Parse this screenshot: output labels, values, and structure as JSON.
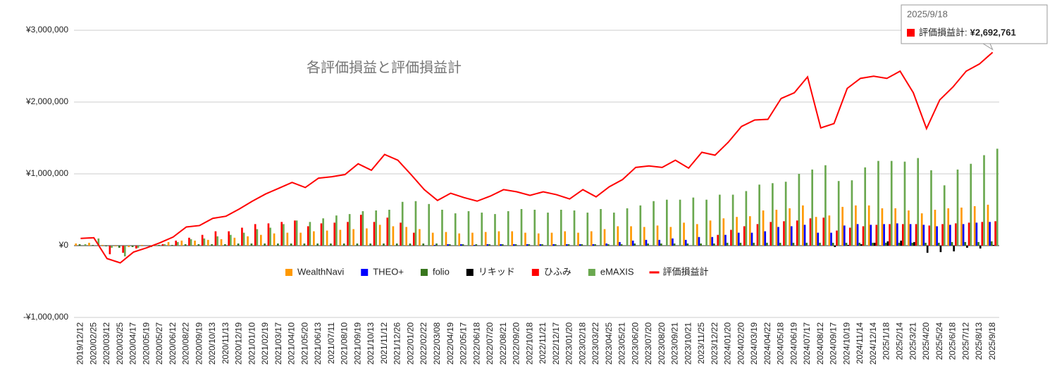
{
  "chart_data": {
    "type": "bar_line",
    "title": "各評価損益と評価損益計",
    "categories": [
      "2019/12/12",
      "2020/02/25",
      "2020/03/12",
      "2020/03/25",
      "2020/04/17",
      "2020/05/19",
      "2020/05/27",
      "2020/06/12",
      "2020/08/22",
      "2020/09/19",
      "2020/10/13",
      "2020/11/13",
      "2020/12/19",
      "2021/01/10",
      "2021/02/19",
      "2021/03/17",
      "2021/04/10",
      "2021/05/20",
      "2021/06/13",
      "2021/07/11",
      "2021/08/10",
      "2021/09/19",
      "2021/10/13",
      "2021/11/12",
      "2021/12/26",
      "2022/01/20",
      "2022/02/22",
      "2022/03/08",
      "2022/04/19",
      "2022/05/17",
      "2022/06/18",
      "2022/07/20",
      "2022/08/21",
      "2022/09/20",
      "2022/10/18",
      "2022/11/21",
      "2022/12/17",
      "2023/01/20",
      "2023/02/18",
      "2023/03/22",
      "2023/04/25",
      "2023/05/21",
      "2023/06/20",
      "2023/07/20",
      "2023/08/20",
      "2023/09/21",
      "2023/10/21",
      "2023/11/25",
      "2023/12/22",
      "2024/01/20",
      "2024/02/20",
      "2024/03/19",
      "2024/04/22",
      "2024/05/18",
      "2024/06/19",
      "2024/07/17",
      "2024/08/12",
      "2024/09/17",
      "2024/10/19",
      "2024/11/14",
      "2024/12/14",
      "2025/1/18",
      "2025/2/14",
      "2025/3/21",
      "2025/4/20",
      "2025/5/24",
      "2025/6/18",
      "2025/7/12",
      "2025/8/13",
      "2025/9/18"
    ],
    "series": [
      {
        "name": "WealthNavi",
        "kind": "bar",
        "color": "#ff9900",
        "values": [
          30000,
          40000,
          10000,
          -10000,
          -20000,
          10000,
          20000,
          50000,
          70000,
          70000,
          80000,
          90000,
          110000,
          130000,
          150000,
          170000,
          180000,
          180000,
          200000,
          210000,
          220000,
          230000,
          240000,
          290000,
          270000,
          260000,
          230000,
          180000,
          190000,
          170000,
          180000,
          190000,
          200000,
          200000,
          180000,
          170000,
          180000,
          200000,
          180000,
          200000,
          230000,
          270000,
          270000,
          260000,
          280000,
          260000,
          320000,
          300000,
          350000,
          380000,
          400000,
          410000,
          490000,
          500000,
          520000,
          560000,
          400000,
          420000,
          540000,
          560000,
          560000,
          520000,
          520000,
          490000,
          450000,
          500000,
          520000,
          530000,
          550000,
          570000
        ]
      },
      {
        "name": "THEO+",
        "kind": "bar",
        "color": "#0000ff",
        "values": [
          0,
          0,
          0,
          0,
          0,
          0,
          0,
          0,
          0,
          0,
          0,
          0,
          0,
          0,
          0,
          0,
          0,
          0,
          0,
          0,
          0,
          0,
          0,
          0,
          0,
          0,
          0,
          10000,
          20000,
          20000,
          10000,
          20000,
          20000,
          20000,
          20000,
          20000,
          20000,
          20000,
          20000,
          20000,
          30000,
          50000,
          70000,
          80000,
          80000,
          100000,
          80000,
          120000,
          120000,
          150000,
          180000,
          180000,
          200000,
          260000,
          270000,
          290000,
          180000,
          180000,
          280000,
          300000,
          290000,
          300000,
          310000,
          300000,
          290000,
          270000,
          290000,
          300000,
          320000,
          330000
        ]
      },
      {
        "name": "folio",
        "kind": "bar",
        "color": "#38761d",
        "values": [
          20000,
          10000,
          -10000,
          -30000,
          -20000,
          0,
          10000,
          10000,
          20000,
          20000,
          20000,
          20000,
          30000,
          30000,
          30000,
          30000,
          30000,
          30000,
          30000,
          30000,
          30000,
          30000,
          30000,
          30000,
          30000,
          30000,
          30000,
          30000,
          20000,
          20000,
          20000,
          20000,
          20000,
          20000,
          20000,
          20000,
          20000,
          20000,
          20000,
          20000,
          20000,
          20000,
          30000,
          30000,
          30000,
          30000,
          30000,
          30000,
          30000,
          40000,
          40000,
          40000,
          40000,
          40000,
          40000,
          40000,
          40000,
          40000,
          40000,
          40000,
          40000,
          40000,
          40000,
          40000,
          40000,
          40000,
          50000,
          50000,
          50000,
          60000
        ]
      },
      {
        "name": "リキッド",
        "kind": "bar",
        "color": "#000000",
        "values": [
          0,
          0,
          0,
          0,
          0,
          0,
          0,
          0,
          0,
          0,
          0,
          0,
          0,
          0,
          0,
          0,
          0,
          0,
          0,
          0,
          0,
          0,
          0,
          0,
          0,
          0,
          0,
          0,
          0,
          0,
          0,
          0,
          0,
          0,
          0,
          0,
          0,
          0,
          0,
          0,
          0,
          0,
          0,
          0,
          0,
          0,
          0,
          0,
          0,
          0,
          0,
          0,
          0,
          0,
          0,
          0,
          0,
          -20000,
          10000,
          20000,
          40000,
          60000,
          70000,
          50000,
          -100000,
          -90000,
          -80000,
          -30000,
          -40000,
          10000
        ]
      },
      {
        "name": "ひふみ",
        "kind": "bar",
        "color": "#ff0000",
        "values": [
          0,
          0,
          -120000,
          -100000,
          -40000,
          0,
          20000,
          70000,
          110000,
          150000,
          200000,
          200000,
          250000,
          300000,
          310000,
          330000,
          350000,
          270000,
          310000,
          320000,
          330000,
          430000,
          330000,
          390000,
          320000,
          180000,
          0,
          0,
          0,
          0,
          0,
          0,
          0,
          0,
          0,
          0,
          0,
          0,
          0,
          0,
          0,
          0,
          0,
          0,
          0,
          0,
          0,
          0,
          150000,
          220000,
          270000,
          300000,
          330000,
          340000,
          350000,
          380000,
          390000,
          210000,
          250000,
          270000,
          290000,
          300000,
          300000,
          300000,
          280000,
          300000,
          310000,
          320000,
          330000,
          340000
        ]
      },
      {
        "name": "eMAXIS",
        "kind": "bar",
        "color": "#6aa84f",
        "values": [
          20000,
          100000,
          -30000,
          -150000,
          -30000,
          -20000,
          20000,
          50000,
          90000,
          100000,
          130000,
          150000,
          180000,
          230000,
          250000,
          300000,
          350000,
          330000,
          380000,
          420000,
          440000,
          480000,
          490000,
          500000,
          610000,
          620000,
          580000,
          500000,
          450000,
          480000,
          460000,
          440000,
          480000,
          510000,
          500000,
          460000,
          500000,
          490000,
          460000,
          510000,
          460000,
          520000,
          560000,
          620000,
          640000,
          640000,
          670000,
          640000,
          710000,
          710000,
          760000,
          850000,
          870000,
          890000,
          1000000,
          1060000,
          1120000,
          900000,
          910000,
          1090000,
          1180000,
          1180000,
          1170000,
          1220000,
          1050000,
          840000,
          1060000,
          1140000,
          1260000,
          1350000
        ]
      },
      {
        "name": "評価損益計",
        "kind": "line",
        "color": "#ff0000",
        "values": [
          100000,
          110000,
          -180000,
          -240000,
          -90000,
          -30000,
          40000,
          120000,
          260000,
          280000,
          380000,
          410000,
          510000,
          620000,
          720000,
          800000,
          880000,
          810000,
          940000,
          960000,
          990000,
          1140000,
          1050000,
          1270000,
          1190000,
          990000,
          780000,
          630000,
          730000,
          670000,
          620000,
          690000,
          780000,
          750000,
          700000,
          750000,
          710000,
          650000,
          780000,
          680000,
          820000,
          920000,
          1090000,
          1110000,
          1090000,
          1190000,
          1080000,
          1300000,
          1260000,
          1440000,
          1660000,
          1750000,
          1760000,
          2050000,
          2130000,
          2350000,
          1640000,
          1700000,
          2190000,
          2330000,
          2360000,
          2330000,
          2430000,
          2130000,
          1630000,
          2030000,
          2210000,
          2430000,
          2530000,
          2692761
        ]
      }
    ],
    "ylim": [
      -1000000,
      3000000
    ],
    "yticks": [
      {
        "value": -1000000,
        "label": "-¥1,000,000"
      },
      {
        "value": 0,
        "label": "¥0"
      },
      {
        "value": 1000000,
        "label": "¥1,000,000"
      },
      {
        "value": 2000000,
        "label": "¥2,000,000"
      },
      {
        "value": 3000000,
        "label": "¥3,000,000"
      }
    ],
    "grid": true,
    "legend": "bottom",
    "tooltip": {
      "label": "評価損益計:",
      "value_label": "¥2,692,761"
    }
  }
}
